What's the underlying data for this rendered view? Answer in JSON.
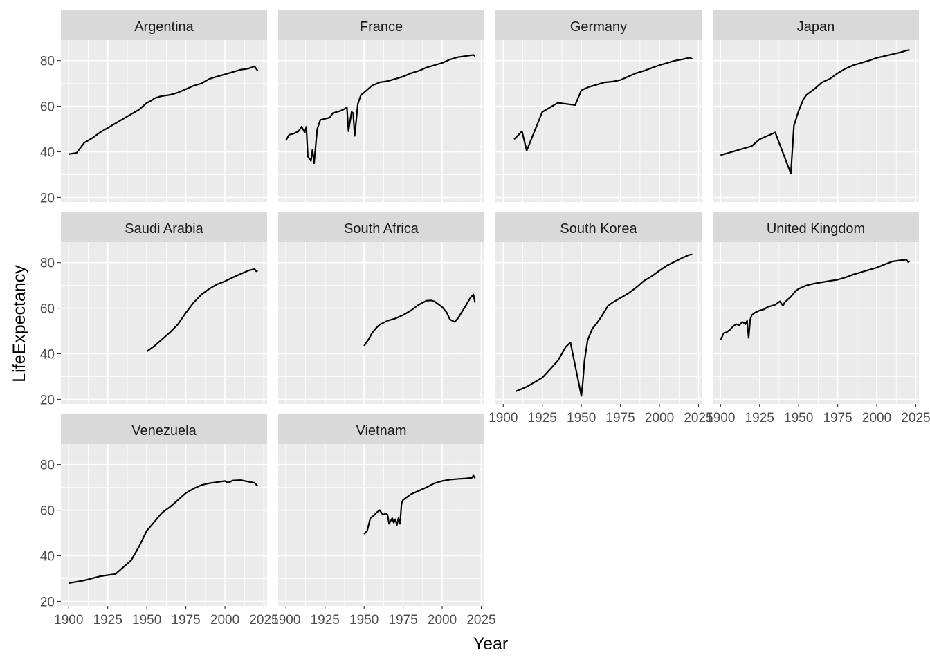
{
  "chart_data": {
    "type": "line",
    "facet": "small-multiples",
    "xlabel": "Year",
    "ylabel": "LifeExpectancy",
    "xlim": [
      1895,
      2027
    ],
    "ylim": [
      18,
      89
    ],
    "x_ticks": [
      1900,
      1925,
      1950,
      1975,
      2000,
      2025
    ],
    "y_ticks": [
      20,
      40,
      60,
      80
    ],
    "grid": true,
    "line_color": "#000000",
    "panel_background": "#ebebeb",
    "strip_background": "#d9d9d9",
    "panels": [
      {
        "name": "Argentina",
        "points": [
          [
            1900,
            39
          ],
          [
            1905,
            39.5
          ],
          [
            1910,
            44
          ],
          [
            1915,
            46
          ],
          [
            1920,
            48.5
          ],
          [
            1930,
            52.5
          ],
          [
            1940,
            56.5
          ],
          [
            1945,
            58.5
          ],
          [
            1950,
            61.5
          ],
          [
            1953,
            62.5
          ],
          [
            1955,
            63.5
          ],
          [
            1958,
            64.2
          ],
          [
            1960,
            64.5
          ],
          [
            1965,
            65
          ],
          [
            1970,
            66
          ],
          [
            1975,
            67.5
          ],
          [
            1980,
            69
          ],
          [
            1985,
            70
          ],
          [
            1990,
            72
          ],
          [
            1995,
            73
          ],
          [
            2000,
            74
          ],
          [
            2005,
            75
          ],
          [
            2010,
            76
          ],
          [
            2015,
            76.5
          ],
          [
            2019,
            77.5
          ],
          [
            2021,
            75.5
          ]
        ]
      },
      {
        "name": "France",
        "points": [
          [
            1900,
            45
          ],
          [
            1902,
            47.5
          ],
          [
            1905,
            48
          ],
          [
            1908,
            49
          ],
          [
            1910,
            51
          ],
          [
            1912,
            48.5
          ],
          [
            1913,
            51
          ],
          [
            1914,
            38
          ],
          [
            1916,
            36
          ],
          [
            1917,
            41
          ],
          [
            1918,
            35
          ],
          [
            1920,
            50
          ],
          [
            1922,
            54
          ],
          [
            1925,
            54.5
          ],
          [
            1928,
            55
          ],
          [
            1930,
            57
          ],
          [
            1935,
            58
          ],
          [
            1938,
            59
          ],
          [
            1939,
            59.5
          ],
          [
            1940,
            49
          ],
          [
            1942,
            57.5
          ],
          [
            1943,
            57
          ],
          [
            1944,
            47
          ],
          [
            1946,
            61
          ],
          [
            1948,
            65
          ],
          [
            1950,
            66
          ],
          [
            1955,
            69
          ],
          [
            1960,
            70.5
          ],
          [
            1965,
            71
          ],
          [
            1970,
            72
          ],
          [
            1975,
            73
          ],
          [
            1980,
            74.5
          ],
          [
            1985,
            75.5
          ],
          [
            1990,
            77
          ],
          [
            1995,
            78
          ],
          [
            2000,
            79
          ],
          [
            2005,
            80.5
          ],
          [
            2010,
            81.5
          ],
          [
            2015,
            82
          ],
          [
            2020,
            82.5
          ],
          [
            2021,
            82
          ]
        ]
      },
      {
        "name": "Germany",
        "points": [
          [
            1907,
            45.5
          ],
          [
            1912,
            49
          ],
          [
            1915,
            40.5
          ],
          [
            1925,
            57.5
          ],
          [
            1935,
            61.5
          ],
          [
            1946,
            60.5
          ],
          [
            1950,
            67
          ],
          [
            1955,
            68.5
          ],
          [
            1960,
            69.5
          ],
          [
            1965,
            70.5
          ],
          [
            1970,
            70.8
          ],
          [
            1975,
            71.5
          ],
          [
            1980,
            73
          ],
          [
            1985,
            74.5
          ],
          [
            1990,
            75.5
          ],
          [
            1995,
            76.8
          ],
          [
            2000,
            78
          ],
          [
            2005,
            79
          ],
          [
            2010,
            80
          ],
          [
            2015,
            80.6
          ],
          [
            2019,
            81.3
          ],
          [
            2021,
            80.8
          ]
        ]
      },
      {
        "name": "Japan",
        "points": [
          [
            1900,
            38.5
          ],
          [
            1910,
            40.5
          ],
          [
            1920,
            42.5
          ],
          [
            1925,
            45.5
          ],
          [
            1935,
            48.5
          ],
          [
            1945,
            30.5
          ],
          [
            1947,
            51.5
          ],
          [
            1950,
            58
          ],
          [
            1953,
            63
          ],
          [
            1955,
            65
          ],
          [
            1960,
            67.5
          ],
          [
            1965,
            70.5
          ],
          [
            1970,
            72
          ],
          [
            1975,
            74.5
          ],
          [
            1980,
            76.5
          ],
          [
            1985,
            78
          ],
          [
            1990,
            79
          ],
          [
            1995,
            80
          ],
          [
            2000,
            81.2
          ],
          [
            2005,
            82
          ],
          [
            2010,
            82.8
          ],
          [
            2015,
            83.6
          ],
          [
            2020,
            84.6
          ],
          [
            2021,
            84.6
          ]
        ]
      },
      {
        "name": "Saudi Arabia",
        "points": [
          [
            1950,
            41
          ],
          [
            1955,
            43.5
          ],
          [
            1960,
            46.5
          ],
          [
            1965,
            49.5
          ],
          [
            1970,
            53
          ],
          [
            1975,
            58
          ],
          [
            1980,
            62.5
          ],
          [
            1985,
            66
          ],
          [
            1990,
            68.5
          ],
          [
            1995,
            70.5
          ],
          [
            2000,
            71.8
          ],
          [
            2005,
            73.5
          ],
          [
            2010,
            75
          ],
          [
            2015,
            76.5
          ],
          [
            2019,
            77.2
          ],
          [
            2020,
            76.2
          ],
          [
            2021,
            76.5
          ]
        ]
      },
      {
        "name": "South Africa",
        "points": [
          [
            1950,
            43.5
          ],
          [
            1953,
            46.5
          ],
          [
            1955,
            49
          ],
          [
            1958,
            51.5
          ],
          [
            1960,
            52.8
          ],
          [
            1965,
            54.5
          ],
          [
            1970,
            55.5
          ],
          [
            1975,
            57
          ],
          [
            1980,
            59
          ],
          [
            1985,
            61.5
          ],
          [
            1990,
            63.3
          ],
          [
            1993,
            63.4
          ],
          [
            1995,
            63
          ],
          [
            2000,
            60.5
          ],
          [
            2003,
            58
          ],
          [
            2005,
            55
          ],
          [
            2008,
            54
          ],
          [
            2010,
            55.5
          ],
          [
            2015,
            61
          ],
          [
            2018,
            64.5
          ],
          [
            2020,
            66
          ],
          [
            2021,
            62.5
          ]
        ]
      },
      {
        "name": "South Korea",
        "points": [
          [
            1908,
            23.5
          ],
          [
            1915,
            25.5
          ],
          [
            1925,
            29.5
          ],
          [
            1935,
            37
          ],
          [
            1940,
            43
          ],
          [
            1943,
            45
          ],
          [
            1950,
            21.5
          ],
          [
            1951,
            28
          ],
          [
            1952,
            37
          ],
          [
            1954,
            46
          ],
          [
            1957,
            51
          ],
          [
            1960,
            53.5
          ],
          [
            1963,
            56.5
          ],
          [
            1967,
            61
          ],
          [
            1970,
            62.5
          ],
          [
            1975,
            64.5
          ],
          [
            1980,
            66.5
          ],
          [
            1985,
            69
          ],
          [
            1990,
            72
          ],
          [
            1995,
            74
          ],
          [
            2000,
            76.5
          ],
          [
            2005,
            78.8
          ],
          [
            2010,
            80.5
          ],
          [
            2015,
            82.2
          ],
          [
            2019,
            83.4
          ],
          [
            2021,
            83.6
          ]
        ]
      },
      {
        "name": "United Kingdom",
        "points": [
          [
            1900,
            46
          ],
          [
            1902,
            49
          ],
          [
            1904,
            49.5
          ],
          [
            1906,
            50.5
          ],
          [
            1908,
            52
          ],
          [
            1910,
            53
          ],
          [
            1912,
            52.5
          ],
          [
            1914,
            54
          ],
          [
            1916,
            53
          ],
          [
            1917,
            54.5
          ],
          [
            1918,
            47
          ],
          [
            1919,
            55
          ],
          [
            1920,
            57
          ],
          [
            1922,
            58
          ],
          [
            1925,
            59
          ],
          [
            1928,
            59.5
          ],
          [
            1930,
            60.5
          ],
          [
            1935,
            61.5
          ],
          [
            1938,
            63
          ],
          [
            1940,
            61
          ],
          [
            1941,
            62.5
          ],
          [
            1945,
            65
          ],
          [
            1948,
            67.5
          ],
          [
            1950,
            68.5
          ],
          [
            1955,
            70
          ],
          [
            1960,
            70.8
          ],
          [
            1965,
            71.4
          ],
          [
            1970,
            72
          ],
          [
            1975,
            72.5
          ],
          [
            1980,
            73.5
          ],
          [
            1985,
            74.8
          ],
          [
            1990,
            75.8
          ],
          [
            1995,
            76.8
          ],
          [
            2000,
            77.8
          ],
          [
            2005,
            79.2
          ],
          [
            2010,
            80.5
          ],
          [
            2015,
            81
          ],
          [
            2019,
            81.3
          ],
          [
            2020,
            80.3
          ],
          [
            2021,
            80.6
          ]
        ]
      },
      {
        "name": "Venezuela",
        "points": [
          [
            1900,
            28
          ],
          [
            1910,
            29.2
          ],
          [
            1920,
            31
          ],
          [
            1930,
            32
          ],
          [
            1940,
            38
          ],
          [
            1945,
            44
          ],
          [
            1950,
            51
          ],
          [
            1955,
            55
          ],
          [
            1958,
            57.5
          ],
          [
            1960,
            59
          ],
          [
            1965,
            61.5
          ],
          [
            1970,
            64.5
          ],
          [
            1975,
            67.5
          ],
          [
            1980,
            69.5
          ],
          [
            1985,
            71
          ],
          [
            1990,
            71.8
          ],
          [
            1995,
            72.3
          ],
          [
            2000,
            72.8
          ],
          [
            2002,
            72
          ],
          [
            2005,
            73
          ],
          [
            2010,
            73.2
          ],
          [
            2015,
            72.5
          ],
          [
            2019,
            72
          ],
          [
            2021,
            70.5
          ]
        ]
      },
      {
        "name": "Vietnam",
        "points": [
          [
            1950,
            49.5
          ],
          [
            1952,
            51
          ],
          [
            1954,
            56.5
          ],
          [
            1956,
            57.5
          ],
          [
            1958,
            59
          ],
          [
            1960,
            60
          ],
          [
            1962,
            58
          ],
          [
            1964,
            58.5
          ],
          [
            1965,
            58
          ],
          [
            1966,
            54
          ],
          [
            1968,
            56.5
          ],
          [
            1969,
            54.5
          ],
          [
            1970,
            56
          ],
          [
            1971,
            53.5
          ],
          [
            1972,
            56.5
          ],
          [
            1973,
            54
          ],
          [
            1974,
            63
          ],
          [
            1975,
            64.5
          ],
          [
            1978,
            66
          ],
          [
            1980,
            67
          ],
          [
            1985,
            68.5
          ],
          [
            1990,
            70
          ],
          [
            1995,
            71.8
          ],
          [
            2000,
            72.8
          ],
          [
            2005,
            73.4
          ],
          [
            2010,
            73.7
          ],
          [
            2015,
            73.9
          ],
          [
            2019,
            74.2
          ],
          [
            2020,
            75.2
          ],
          [
            2021,
            74
          ]
        ]
      }
    ]
  }
}
